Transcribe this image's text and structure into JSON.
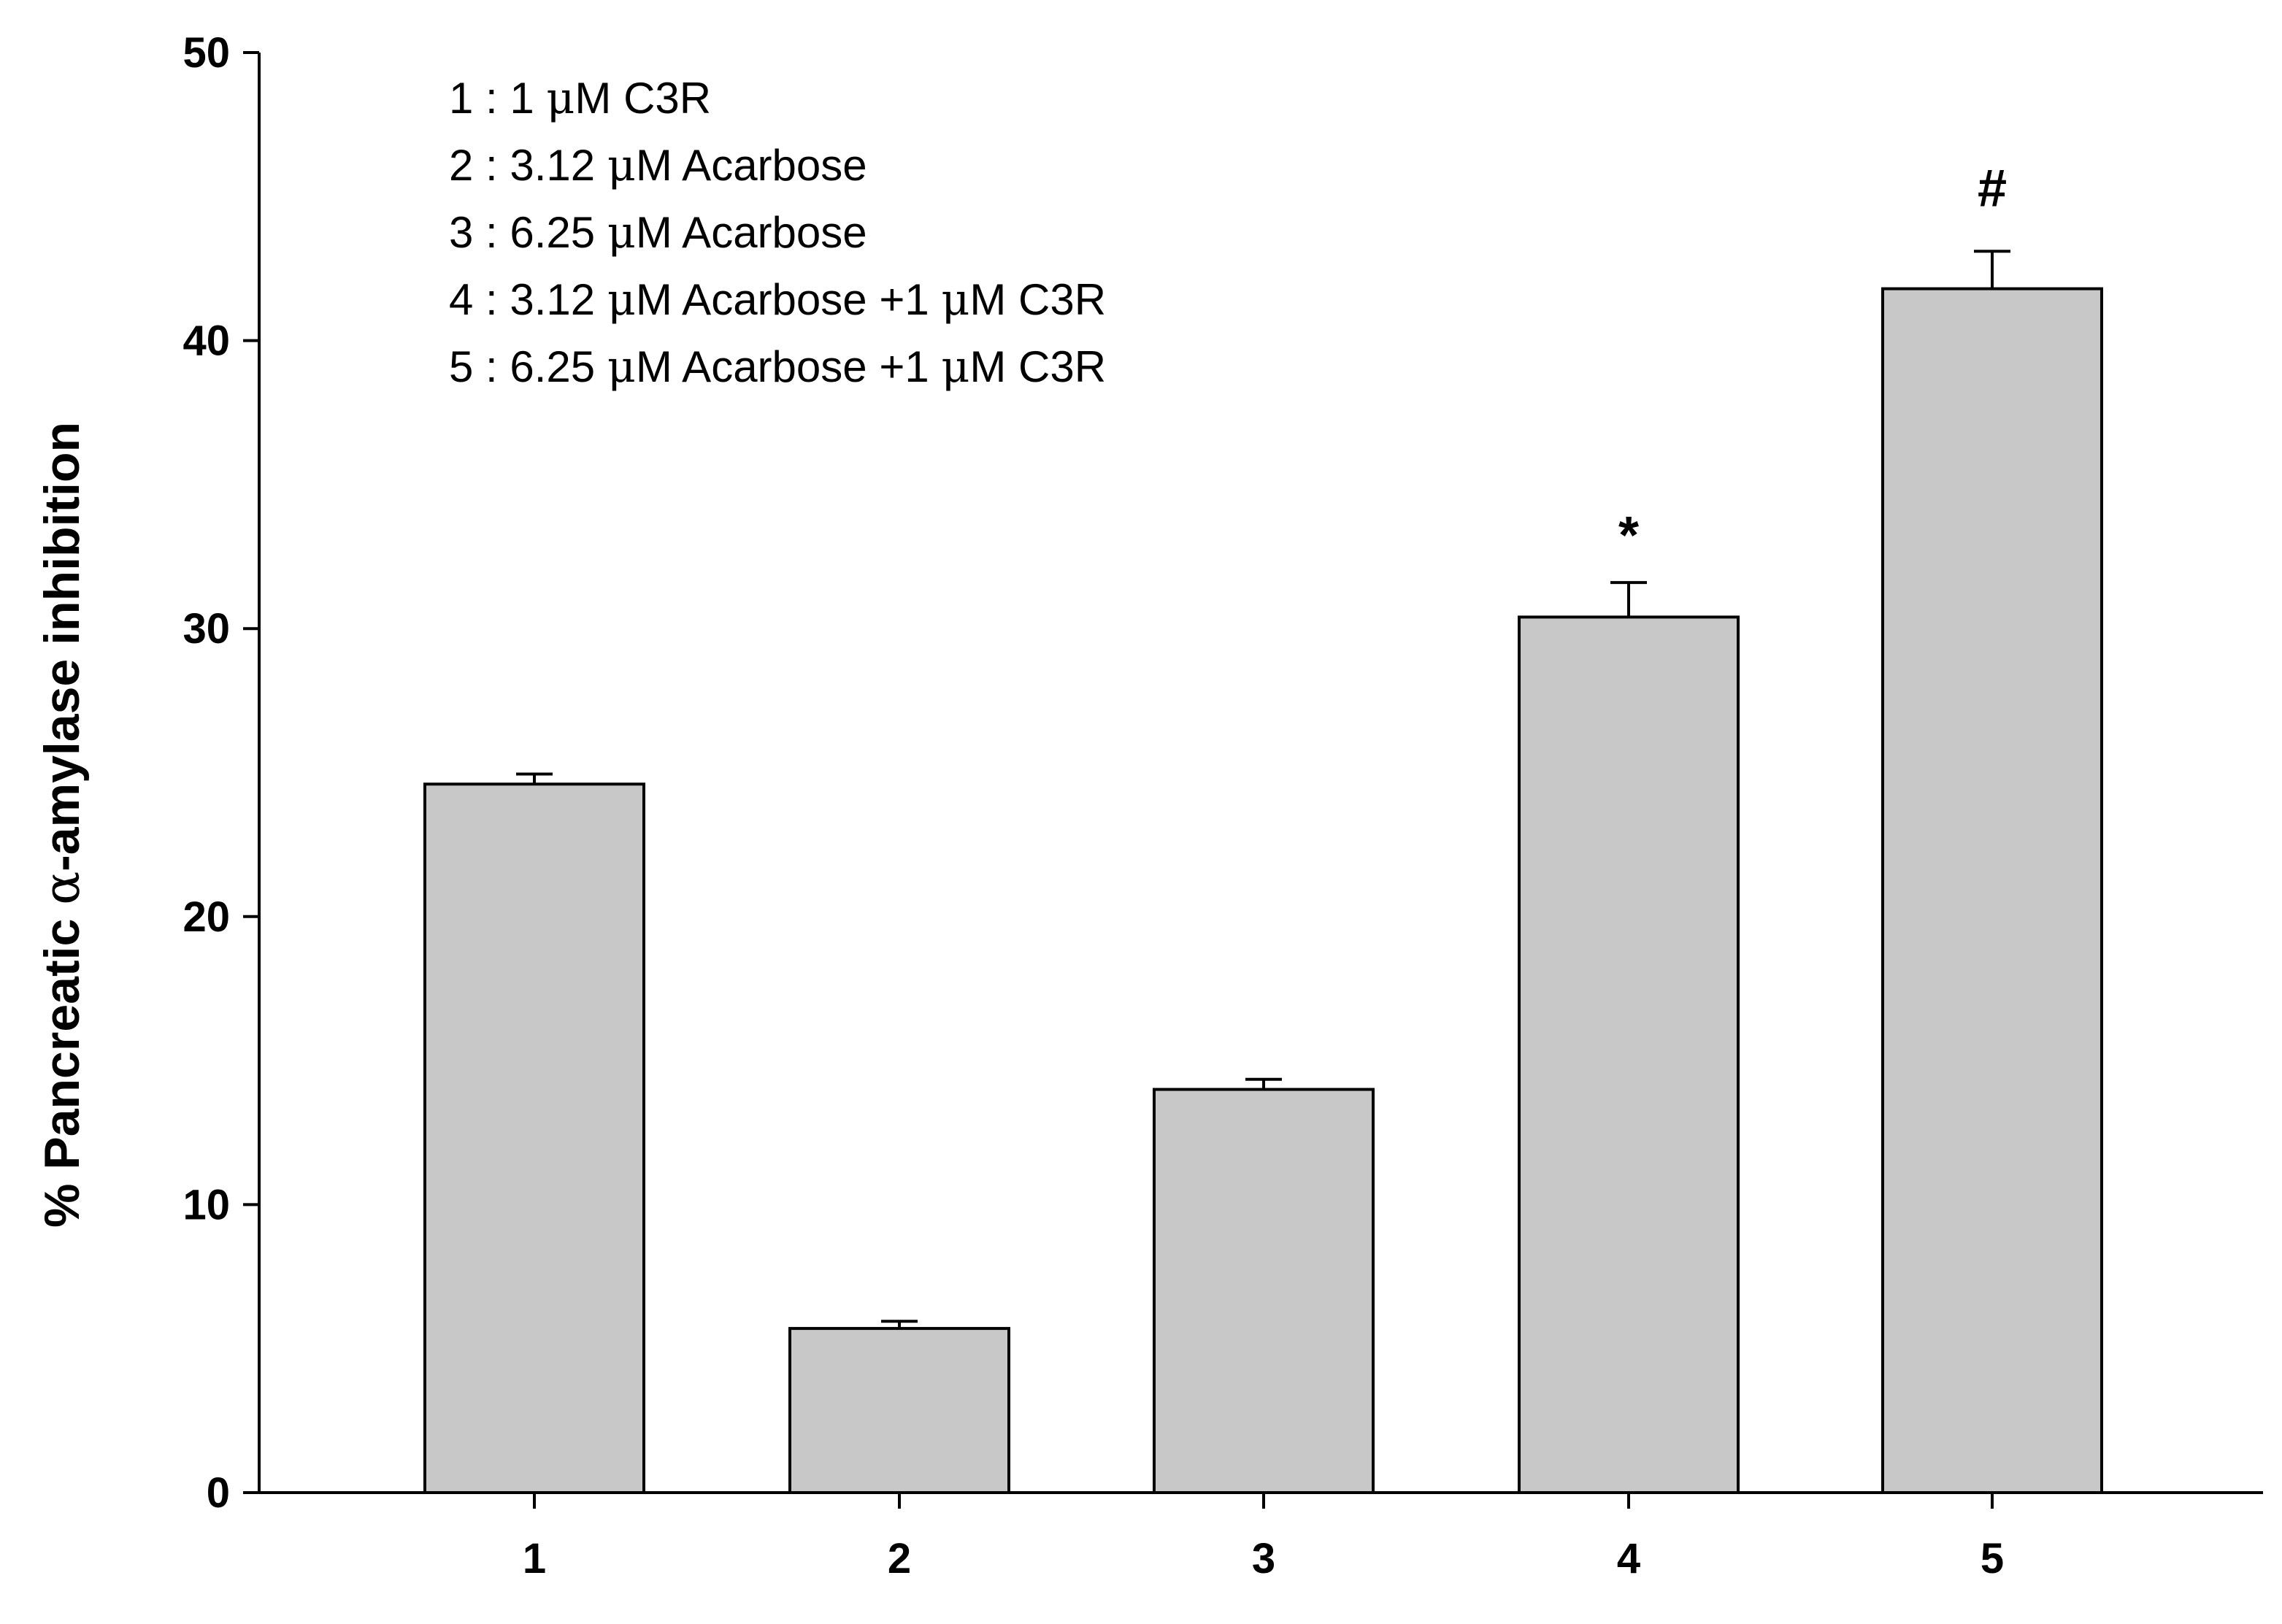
{
  "chart_data": {
    "type": "bar",
    "title": "",
    "xlabel": "",
    "ylabel_prefix": "% Pancreatic ",
    "ylabel_greek": "α",
    "ylabel_suffix": "-amylase inhibition",
    "categories": [
      "1",
      "2",
      "3",
      "4",
      "5"
    ],
    "values": [
      24.6,
      5.7,
      14.0,
      30.4,
      41.8
    ],
    "errors": [
      0.35,
      0.25,
      0.35,
      1.2,
      1.3
    ],
    "significance": [
      "",
      "",
      "",
      "*",
      "#"
    ],
    "ylim": [
      0,
      50
    ],
    "yticks": [
      "0",
      "10",
      "20",
      "30",
      "40",
      "50"
    ],
    "grid": false,
    "colors": {
      "bar_fill": "#c8c8c8",
      "bar_stroke": "#000000",
      "axis": "#000000"
    },
    "legend_position": "top-left",
    "legend": [
      {
        "prefix": "1 : 1 ",
        "greek": "μ",
        "suffix": "M C3R"
      },
      {
        "prefix": "2 : 3.12 ",
        "greek": "μ",
        "suffix": "M Acarbose"
      },
      {
        "prefix": "3 : 6.25 ",
        "greek": "μ",
        "suffix": "M Acarbose"
      },
      {
        "prefix": "4 : 3.12 ",
        "greek": "μ",
        "suffix": "M Acarbose +1 ",
        "greek2": "μ",
        "suffix2": "M C3R"
      },
      {
        "prefix": "5 : 6.25 ",
        "greek": "μ",
        "suffix": "M Acarbose +1 ",
        "greek2": "μ",
        "suffix2": "M C3R"
      }
    ]
  }
}
